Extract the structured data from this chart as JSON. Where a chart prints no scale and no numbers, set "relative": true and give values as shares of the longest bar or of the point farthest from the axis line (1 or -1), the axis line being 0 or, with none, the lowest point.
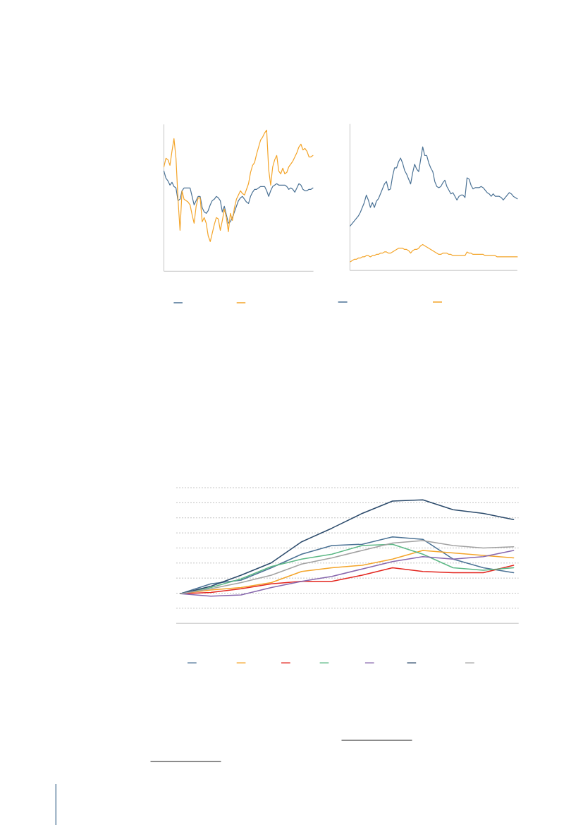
{
  "chart_data": [
    {
      "type": "line",
      "relative": true,
      "categories": [
        null,
        null,
        null,
        null,
        null,
        null,
        null,
        null,
        null,
        null,
        null,
        null,
        null,
        null,
        null,
        null,
        null,
        null,
        null,
        null,
        null,
        null,
        null,
        null,
        null,
        null,
        null,
        null,
        null,
        null,
        null,
        null,
        null,
        null,
        null,
        null,
        null,
        null,
        null,
        null,
        null,
        null,
        null,
        null,
        null,
        null,
        null,
        null,
        null,
        null,
        null,
        null,
        null,
        null,
        null,
        null,
        null,
        null,
        null,
        null,
        null,
        null,
        null,
        null,
        null,
        null,
        null,
        null,
        null,
        null,
        null,
        null,
        null,
        null,
        null
      ],
      "series": [
        {
          "color": "#4b7295",
          "values": [
            0.71,
            0.66,
            0.64,
            0.61,
            0.63,
            0.6,
            0.59,
            0.5,
            0.51,
            0.57,
            0.59,
            0.59,
            0.59,
            0.59,
            0.53,
            0.47,
            0.5,
            0.53,
            0.53,
            0.45,
            0.42,
            0.41,
            0.43,
            0.47,
            0.5,
            0.51,
            0.53,
            0.52,
            0.5,
            0.42,
            0.46,
            0.4,
            0.34,
            0.35,
            0.38,
            0.42,
            0.46,
            0.5,
            0.52,
            0.53,
            0.51,
            0.49,
            0.48,
            0.53,
            0.56,
            0.58,
            0.58,
            0.59,
            0.6,
            0.6,
            0.6,
            0.57,
            0.53,
            0.57,
            0.6,
            0.61,
            0.62,
            0.61,
            0.61,
            0.61,
            0.61,
            0.6,
            0.58,
            0.59,
            0.58,
            0.56,
            0.59,
            0.62,
            0.61,
            0.58,
            0.57,
            0.57,
            0.58,
            0.58,
            0.59
          ]
        },
        {
          "color": "#f4a52a",
          "values": [
            0.74,
            0.8,
            0.79,
            0.75,
            0.85,
            0.94,
            0.8,
            0.51,
            0.29,
            0.57,
            0.51,
            0.5,
            0.49,
            0.47,
            0.4,
            0.34,
            0.46,
            0.52,
            0.52,
            0.35,
            0.38,
            0.34,
            0.25,
            0.21,
            0.27,
            0.33,
            0.38,
            0.37,
            0.29,
            0.36,
            0.44,
            0.38,
            0.28,
            0.41,
            0.36,
            0.45,
            0.51,
            0.54,
            0.57,
            0.55,
            0.54,
            0.58,
            0.62,
            0.7,
            0.75,
            0.77,
            0.83,
            0.88,
            0.93,
            0.95,
            0.98,
            1,
            0.72,
            0.61,
            0.74,
            0.79,
            0.82,
            0.71,
            0.69,
            0.73,
            0.69,
            0.7,
            0.74,
            0.76,
            0.78,
            0.81,
            0.84,
            0.88,
            0.9,
            0.86,
            0.87,
            0.85,
            0.81,
            0.81,
            0.82
          ]
        }
      ]
    },
    {
      "type": "line",
      "relative": true,
      "categories": [
        null,
        null,
        null,
        null,
        null,
        null,
        null,
        null,
        null,
        null,
        null,
        null,
        null,
        null,
        null,
        null,
        null,
        null,
        null,
        null,
        null,
        null,
        null,
        null,
        null,
        null,
        null,
        null,
        null,
        null,
        null,
        null,
        null,
        null,
        null,
        null,
        null,
        null,
        null,
        null,
        null,
        null,
        null,
        null,
        null,
        null,
        null,
        null,
        null,
        null,
        null,
        null,
        null,
        null,
        null,
        null,
        null,
        null,
        null,
        null,
        null,
        null,
        null,
        null,
        null,
        null,
        null,
        null,
        null,
        null,
        null,
        null,
        null,
        null,
        null,
        null,
        null,
        null,
        null,
        null,
        null,
        null,
        null,
        null
      ],
      "series": [
        {
          "color": "#4b7295",
          "values": [
            0.36,
            0.38,
            0.4,
            0.42,
            0.44,
            0.47,
            0.51,
            0.55,
            0.61,
            0.57,
            0.51,
            0.55,
            0.51,
            0.56,
            0.58,
            0.62,
            0.66,
            0.7,
            0.72,
            0.65,
            0.66,
            0.76,
            0.83,
            0.83,
            0.88,
            0.91,
            0.87,
            0.81,
            0.78,
            0.74,
            0.7,
            0.79,
            0.86,
            0.82,
            0.8,
            0.9,
            1,
            0.93,
            0.93,
            0.87,
            0.83,
            0.8,
            0.72,
            0.68,
            0.67,
            0.68,
            0.71,
            0.73,
            0.68,
            0.65,
            0.62,
            0.63,
            0.6,
            0.57,
            0.6,
            0.61,
            0.61,
            0.59,
            0.75,
            0.74,
            0.69,
            0.66,
            0.67,
            0.67,
            0.67,
            0.68,
            0.67,
            0.65,
            0.63,
            0.62,
            0.6,
            0.62,
            0.6,
            0.6,
            0.6,
            0.59,
            0.57,
            0.59,
            0.61,
            0.63,
            0.62,
            0.6,
            0.59,
            0.58
          ]
        },
        {
          "color": "#f4a52a",
          "values": [
            0.07,
            0.08,
            0.09,
            0.09,
            0.1,
            0.1,
            0.11,
            0.11,
            0.12,
            0.12,
            0.11,
            0.12,
            0.12,
            0.13,
            0.13,
            0.14,
            0.14,
            0.15,
            0.15,
            0.14,
            0.14,
            0.15,
            0.16,
            0.17,
            0.18,
            0.18,
            0.18,
            0.17,
            0.17,
            0.16,
            0.14,
            0.16,
            0.17,
            0.17,
            0.18,
            0.2,
            0.21,
            0.2,
            0.19,
            0.18,
            0.17,
            0.16,
            0.15,
            0.14,
            0.13,
            0.13,
            0.14,
            0.14,
            0.14,
            0.13,
            0.13,
            0.12,
            0.12,
            0.12,
            0.12,
            0.12,
            0.12,
            0.12,
            0.15,
            0.14,
            0.14,
            0.13,
            0.13,
            0.13,
            0.13,
            0.13,
            0.13,
            0.12,
            0.12,
            0.12,
            0.12,
            0.12,
            0.12,
            0.11,
            0.11,
            0.11,
            0.11,
            0.11,
            0.11,
            0.11,
            0.11,
            0.11,
            0.11,
            0.11
          ]
        }
      ]
    },
    {
      "type": "line",
      "relative": true,
      "grid": "y",
      "categories": [
        null,
        null,
        null,
        null,
        null,
        null,
        null,
        null,
        null,
        null,
        null,
        null
      ],
      "series": [
        {
          "color": "#4b7295",
          "values": [
            0.24,
            0.32,
            0.35,
            0.45,
            0.56,
            0.63,
            0.64,
            0.7,
            0.68,
            0.52,
            0.45,
            0.41
          ]
        },
        {
          "color": "#f4a52a",
          "values": [
            0.24,
            0.27,
            0.29,
            0.33,
            0.42,
            0.45,
            0.47,
            0.52,
            0.59,
            0.57,
            0.55,
            0.53
          ]
        },
        {
          "color": "#e3261f",
          "values": [
            0.24,
            0.25,
            0.28,
            0.32,
            0.34,
            0.34,
            0.39,
            0.45,
            0.42,
            0.41,
            0.41,
            0.47
          ]
        },
        {
          "color": "#5cb885",
          "values": [
            0.24,
            0.29,
            0.36,
            0.46,
            0.52,
            0.56,
            0.63,
            0.64,
            0.56,
            0.45,
            0.43,
            0.45
          ]
        },
        {
          "color": "#8767ad",
          "values": [
            0.24,
            0.22,
            0.23,
            0.29,
            0.34,
            0.38,
            0.44,
            0.5,
            0.54,
            0.52,
            0.54,
            0.59
          ]
        },
        {
          "color": "#2b4a6b",
          "values": [
            0.24,
            0.3,
            0.39,
            0.49,
            0.66,
            0.77,
            0.89,
            0.99,
            1,
            0.92,
            0.89,
            0.84
          ]
        },
        {
          "color": "#a2a2a2",
          "values": [
            0.24,
            0.28,
            0.33,
            0.39,
            0.48,
            0.53,
            0.59,
            0.65,
            0.67,
            0.63,
            0.61,
            0.62
          ]
        }
      ]
    }
  ]
}
